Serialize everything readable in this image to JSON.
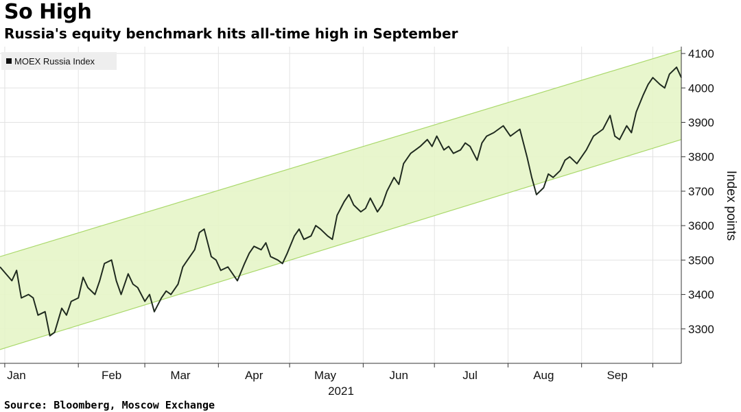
{
  "header": {
    "title": "So High",
    "subtitle": "Russia's equity benchmark hits all-time high in September"
  },
  "footer": {
    "source": "Source: Bloomberg, Moscow Exchange"
  },
  "colors": {
    "line": "#1f2a1f",
    "channel_fill": "#e6f5c8",
    "channel_edge": "#a9d86a",
    "grid": "#e2e2e2",
    "legend_bg": "#eeeeee"
  },
  "chart_data": {
    "type": "line",
    "title": "So High",
    "subtitle": "Russia's equity benchmark hits all-time high in September",
    "ylabel": "Index points",
    "xlabel": "2021",
    "year_label": "2021",
    "ylim": [
      3200,
      4120
    ],
    "y_ticks": [
      3300,
      3400,
      3500,
      3600,
      3700,
      3800,
      3900,
      4000,
      4100
    ],
    "x_tick_labels": [
      "Jan",
      "Feb",
      "Mar",
      "Apr",
      "May",
      "Jun",
      "Jul",
      "Aug",
      "Sep"
    ],
    "grid": true,
    "legend_position": "top-left",
    "series": [
      {
        "name": "MOEX Russia Index",
        "points": [
          [
            "2020-12-30",
            3480
          ],
          [
            "2021-01-04",
            3440
          ],
          [
            "2021-01-06",
            3470
          ],
          [
            "2021-01-08",
            3390
          ],
          [
            "2021-01-11",
            3400
          ],
          [
            "2021-01-13",
            3390
          ],
          [
            "2021-01-15",
            3340
          ],
          [
            "2021-01-18",
            3350
          ],
          [
            "2021-01-20",
            3280
          ],
          [
            "2021-01-22",
            3290
          ],
          [
            "2021-01-25",
            3360
          ],
          [
            "2021-01-27",
            3340
          ],
          [
            "2021-01-29",
            3380
          ],
          [
            "2021-02-01",
            3390
          ],
          [
            "2021-02-03",
            3450
          ],
          [
            "2021-02-05",
            3420
          ],
          [
            "2021-02-08",
            3400
          ],
          [
            "2021-02-10",
            3440
          ],
          [
            "2021-02-12",
            3490
          ],
          [
            "2021-02-15",
            3500
          ],
          [
            "2021-02-17",
            3440
          ],
          [
            "2021-02-19",
            3400
          ],
          [
            "2021-02-22",
            3460
          ],
          [
            "2021-02-24",
            3430
          ],
          [
            "2021-02-26",
            3420
          ],
          [
            "2021-03-01",
            3380
          ],
          [
            "2021-03-03",
            3400
          ],
          [
            "2021-03-05",
            3350
          ],
          [
            "2021-03-08",
            3390
          ],
          [
            "2021-03-10",
            3410
          ],
          [
            "2021-03-12",
            3400
          ],
          [
            "2021-03-15",
            3430
          ],
          [
            "2021-03-17",
            3480
          ],
          [
            "2021-03-19",
            3500
          ],
          [
            "2021-03-22",
            3530
          ],
          [
            "2021-03-24",
            3580
          ],
          [
            "2021-03-26",
            3590
          ],
          [
            "2021-03-29",
            3510
          ],
          [
            "2021-03-31",
            3500
          ],
          [
            "2021-04-02",
            3470
          ],
          [
            "2021-04-05",
            3480
          ],
          [
            "2021-04-07",
            3460
          ],
          [
            "2021-04-09",
            3440
          ],
          [
            "2021-04-12",
            3490
          ],
          [
            "2021-04-14",
            3520
          ],
          [
            "2021-04-16",
            3540
          ],
          [
            "2021-04-19",
            3530
          ],
          [
            "2021-04-21",
            3550
          ],
          [
            "2021-04-23",
            3510
          ],
          [
            "2021-04-26",
            3500
          ],
          [
            "2021-04-28",
            3490
          ],
          [
            "2021-04-30",
            3520
          ],
          [
            "2021-05-03",
            3570
          ],
          [
            "2021-05-05",
            3590
          ],
          [
            "2021-05-07",
            3560
          ],
          [
            "2021-05-10",
            3570
          ],
          [
            "2021-05-12",
            3600
          ],
          [
            "2021-05-14",
            3590
          ],
          [
            "2021-05-17",
            3570
          ],
          [
            "2021-05-19",
            3560
          ],
          [
            "2021-05-21",
            3630
          ],
          [
            "2021-05-24",
            3670
          ],
          [
            "2021-05-26",
            3690
          ],
          [
            "2021-05-28",
            3660
          ],
          [
            "2021-05-31",
            3640
          ],
          [
            "2021-06-02",
            3650
          ],
          [
            "2021-06-04",
            3680
          ],
          [
            "2021-06-07",
            3640
          ],
          [
            "2021-06-09",
            3660
          ],
          [
            "2021-06-11",
            3700
          ],
          [
            "2021-06-14",
            3740
          ],
          [
            "2021-06-16",
            3720
          ],
          [
            "2021-06-18",
            3780
          ],
          [
            "2021-06-21",
            3810
          ],
          [
            "2021-06-23",
            3820
          ],
          [
            "2021-06-25",
            3830
          ],
          [
            "2021-06-28",
            3850
          ],
          [
            "2021-06-30",
            3830
          ],
          [
            "2021-07-02",
            3860
          ],
          [
            "2021-07-05",
            3820
          ],
          [
            "2021-07-07",
            3830
          ],
          [
            "2021-07-09",
            3810
          ],
          [
            "2021-07-12",
            3820
          ],
          [
            "2021-07-14",
            3840
          ],
          [
            "2021-07-16",
            3830
          ],
          [
            "2021-07-19",
            3790
          ],
          [
            "2021-07-21",
            3840
          ],
          [
            "2021-07-23",
            3860
          ],
          [
            "2021-07-26",
            3870
          ],
          [
            "2021-07-28",
            3880
          ],
          [
            "2021-07-30",
            3890
          ],
          [
            "2021-08-02",
            3860
          ],
          [
            "2021-08-04",
            3870
          ],
          [
            "2021-08-06",
            3880
          ],
          [
            "2021-08-09",
            3800
          ],
          [
            "2021-08-11",
            3740
          ],
          [
            "2021-08-13",
            3690
          ],
          [
            "2021-08-16",
            3710
          ],
          [
            "2021-08-18",
            3750
          ],
          [
            "2021-08-20",
            3740
          ],
          [
            "2021-08-23",
            3760
          ],
          [
            "2021-08-25",
            3790
          ],
          [
            "2021-08-27",
            3800
          ],
          [
            "2021-08-30",
            3780
          ],
          [
            "2021-09-01",
            3800
          ],
          [
            "2021-09-03",
            3820
          ],
          [
            "2021-09-06",
            3860
          ],
          [
            "2021-09-08",
            3870
          ],
          [
            "2021-09-10",
            3880
          ],
          [
            "2021-09-13",
            3920
          ],
          [
            "2021-09-15",
            3860
          ],
          [
            "2021-09-17",
            3850
          ],
          [
            "2021-09-20",
            3890
          ],
          [
            "2021-09-22",
            3870
          ],
          [
            "2021-09-24",
            3930
          ],
          [
            "2021-09-27",
            3980
          ],
          [
            "2021-09-29",
            4010
          ],
          [
            "2021-10-01",
            4030
          ],
          [
            "2021-10-04",
            4010
          ],
          [
            "2021-10-06",
            4000
          ],
          [
            "2021-10-08",
            4040
          ],
          [
            "2021-10-11",
            4060
          ],
          [
            "2021-10-13",
            4030
          ]
        ]
      }
    ],
    "channel": {
      "upper": [
        [
          "2020-12-30",
          3510
        ],
        [
          "2021-10-13",
          4110
        ]
      ],
      "lower": [
        [
          "2020-12-30",
          3240
        ],
        [
          "2021-10-13",
          3850
        ]
      ]
    }
  }
}
